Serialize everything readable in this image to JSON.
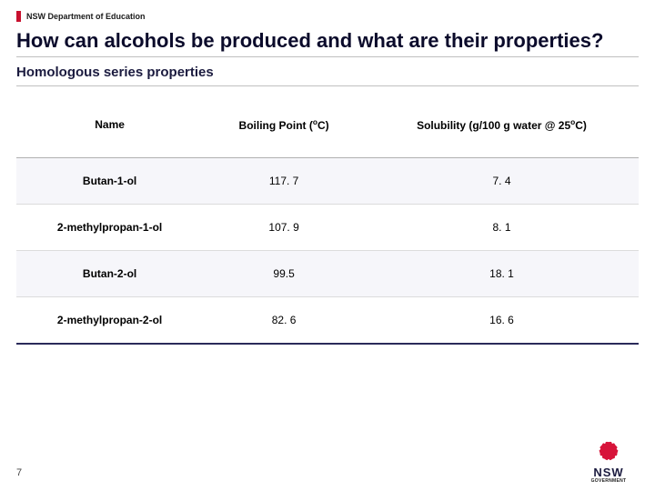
{
  "brand": {
    "bar_color": "#c8102e",
    "label": "NSW Department of Education"
  },
  "title": "How can alcohols be produced and what are their properties?",
  "subtitle": "Homologous series properties",
  "table": {
    "columns": [
      {
        "plain": "Name",
        "html": "Name"
      },
      {
        "plain": "Boiling Point (oC)",
        "html": "Boiling Point (<sup class=\"deg\">o</sup>C)"
      },
      {
        "plain": "Solubility (g/100 g water @ 25oC)",
        "html": "Solubility (g/100 g water @ 25<sup class=\"deg\">o</sup>C)"
      }
    ],
    "rows": [
      {
        "name": "Butan-1-ol",
        "bp": "117. 7",
        "sol": "7. 4",
        "alt": true
      },
      {
        "name": "2-methylpropan-1-ol",
        "bp": "107. 9",
        "sol": "8. 1",
        "alt": false
      },
      {
        "name": "Butan-2-ol",
        "bp": "99.5",
        "sol": "18. 1",
        "alt": true
      },
      {
        "name": "2-methylpropan-2-ol",
        "bp": "82. 6",
        "sol": "16. 6",
        "alt": false
      }
    ],
    "header_border_color": "#b0b0b0",
    "row_border_color": "#dcdcdc",
    "bottom_border_color": "#2a2a5a",
    "alt_row_bg": "#f6f6fa",
    "font_size_pt": 9
  },
  "footer": {
    "page_number": "7"
  },
  "logo": {
    "petal_color": "#d7143a",
    "text_color": "#1b1b3f",
    "gov_label": "GOVERNMENT",
    "nsw_label": "NSW"
  },
  "colors": {
    "title": "#0b0b2b",
    "rule": "#c0c0c0",
    "background": "#ffffff"
  }
}
